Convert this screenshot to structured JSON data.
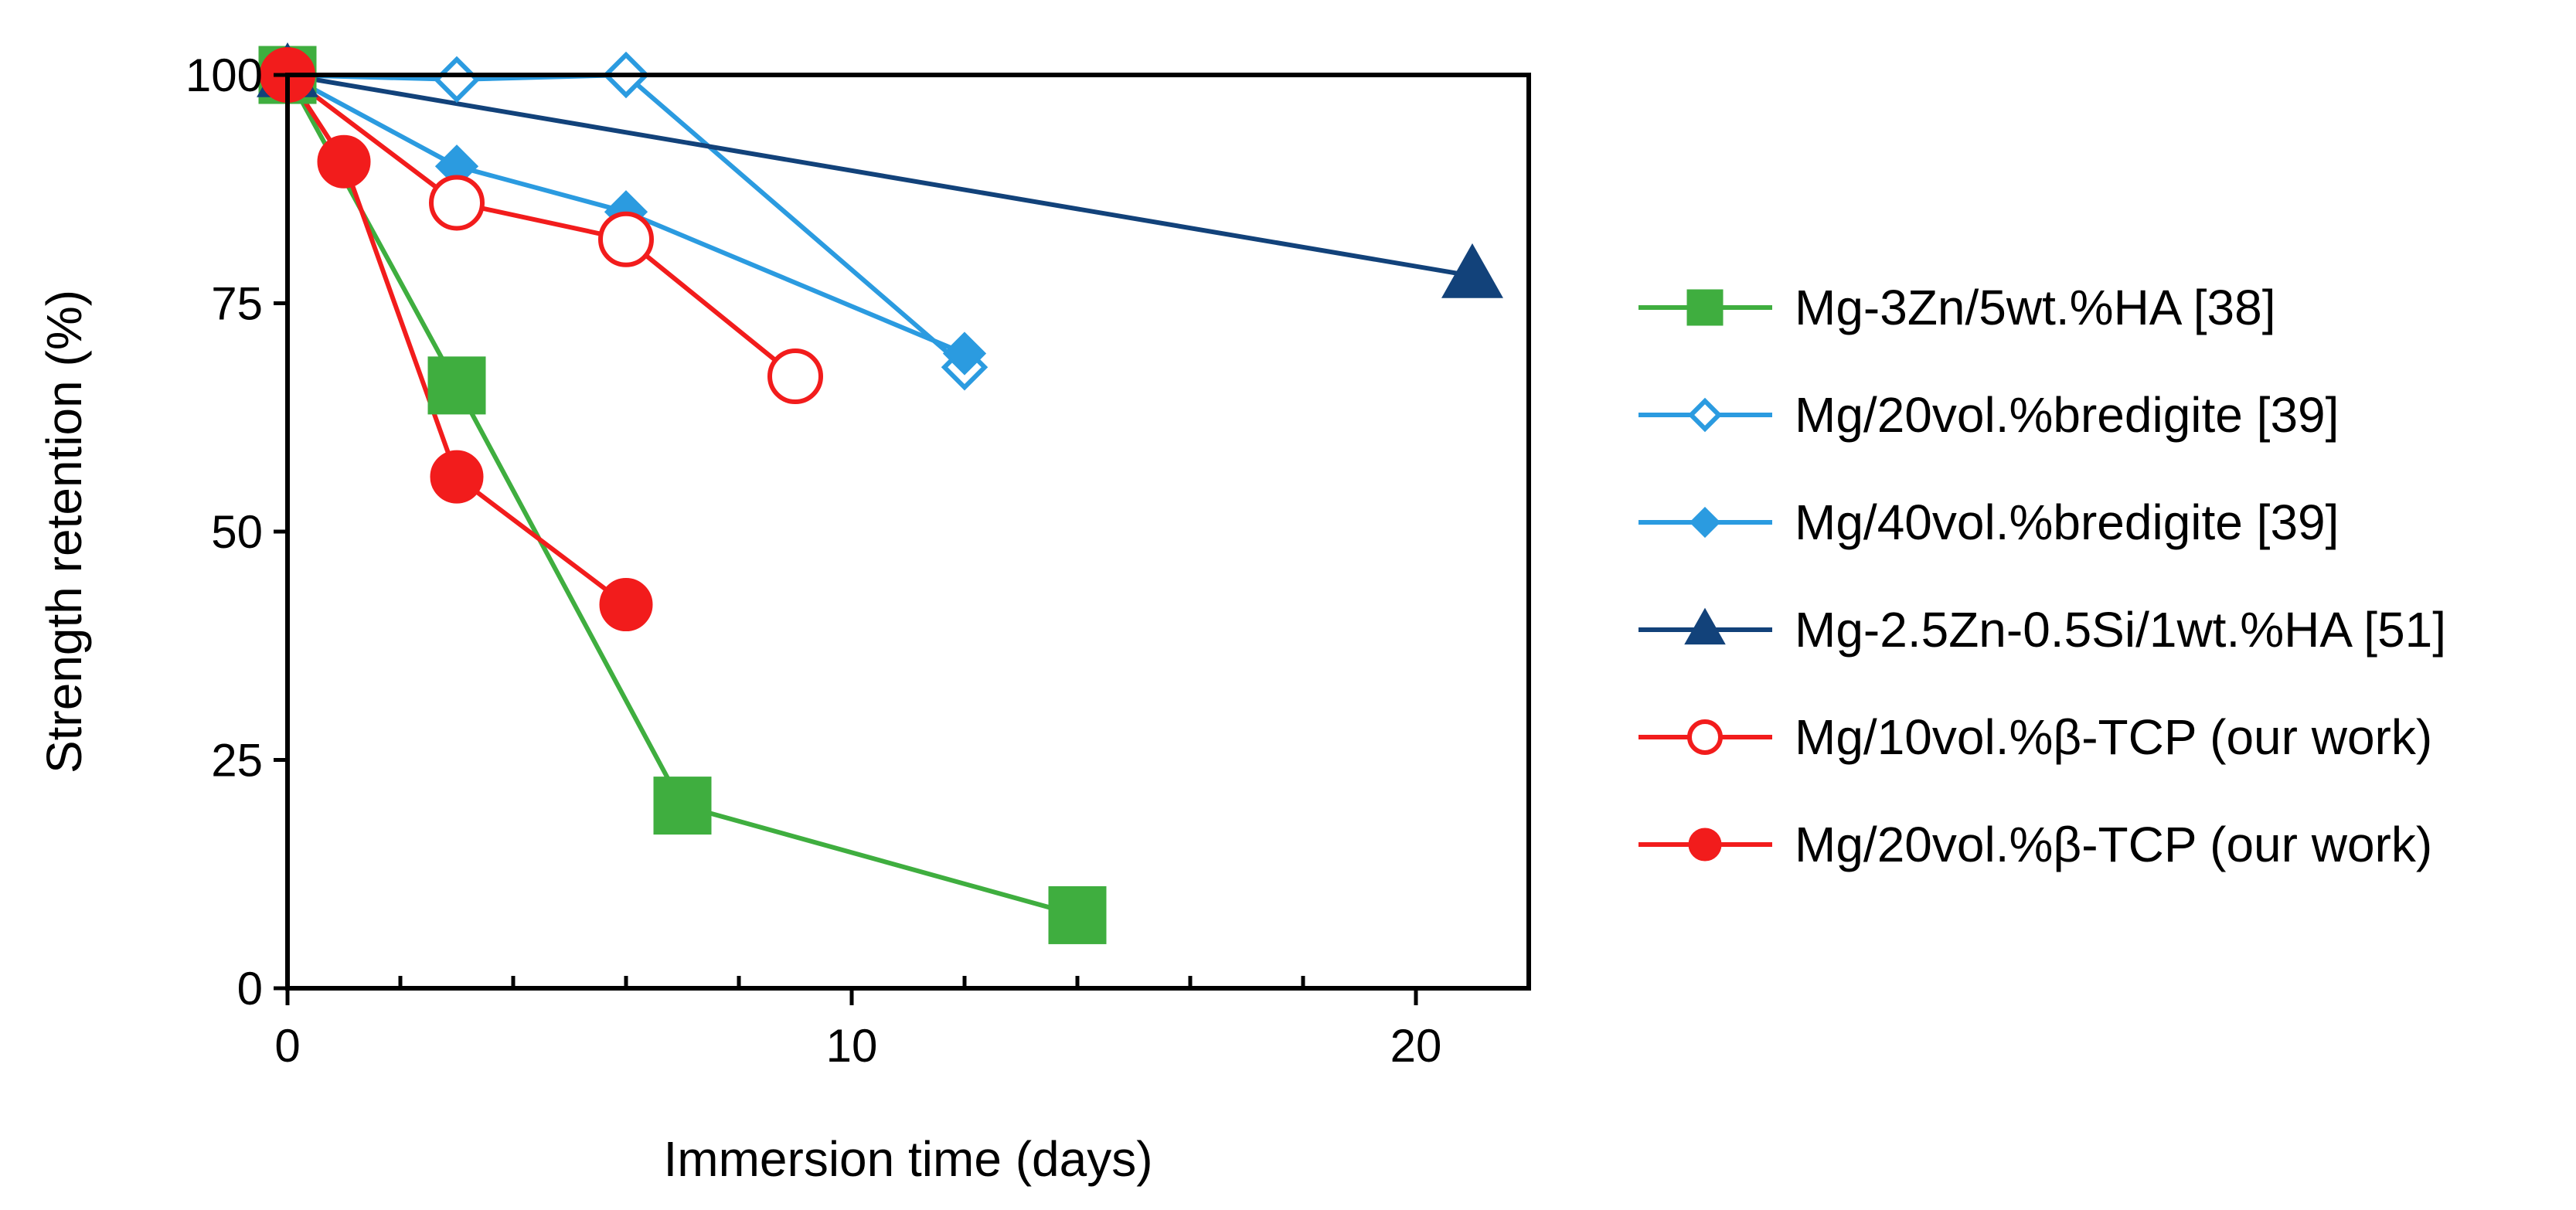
{
  "chart_data": {
    "type": "line",
    "title": "",
    "xlabel": "Immersion time (days)",
    "ylabel": "Strength retention (%)",
    "xlim": [
      0,
      22
    ],
    "ylim": [
      0,
      100
    ],
    "x_ticks": [
      0,
      10,
      20
    ],
    "x_minor_ticks": [
      2,
      4,
      6,
      8,
      12,
      14,
      16,
      18
    ],
    "y_ticks": [
      0,
      25,
      50,
      75,
      100
    ],
    "grid": false,
    "legend_position": "right",
    "series": [
      {
        "name": "Mg-3Zn/5wt.%HA [38]",
        "color": "#3fae3f",
        "marker": "square",
        "filled": true,
        "x": [
          0,
          3,
          7,
          14
        ],
        "y": [
          100,
          66,
          20,
          8
        ]
      },
      {
        "name": "Mg/20vol.%bredigite [39]",
        "color": "#2b9be0",
        "marker": "diamond",
        "filled": false,
        "x": [
          0,
          3,
          6,
          12
        ],
        "y": [
          100,
          99.5,
          100,
          68
        ]
      },
      {
        "name": "Mg/40vol.%bredigite [39]",
        "color": "#2b9be0",
        "marker": "diamond",
        "filled": true,
        "x": [
          0,
          3,
          6,
          12
        ],
        "y": [
          100,
          90,
          85,
          69.5
        ]
      },
      {
        "name": "Mg-2.5Zn-0.5Si/1wt.%HA [51]",
        "color": "#12427a",
        "marker": "triangle",
        "filled": true,
        "x": [
          0,
          21
        ],
        "y": [
          100,
          78
        ]
      },
      {
        "name": "Mg/10vol.%β-TCP (our work)",
        "color": "#f21c1c",
        "marker": "circle",
        "filled": false,
        "x": [
          0,
          3,
          6,
          9
        ],
        "y": [
          100,
          86,
          82,
          67
        ]
      },
      {
        "name": "Mg/20vol.%β-TCP (our work)",
        "color": "#f21c1c",
        "marker": "circle",
        "filled": true,
        "x": [
          0,
          1,
          3,
          6
        ],
        "y": [
          100,
          90.5,
          56,
          42
        ]
      }
    ]
  }
}
